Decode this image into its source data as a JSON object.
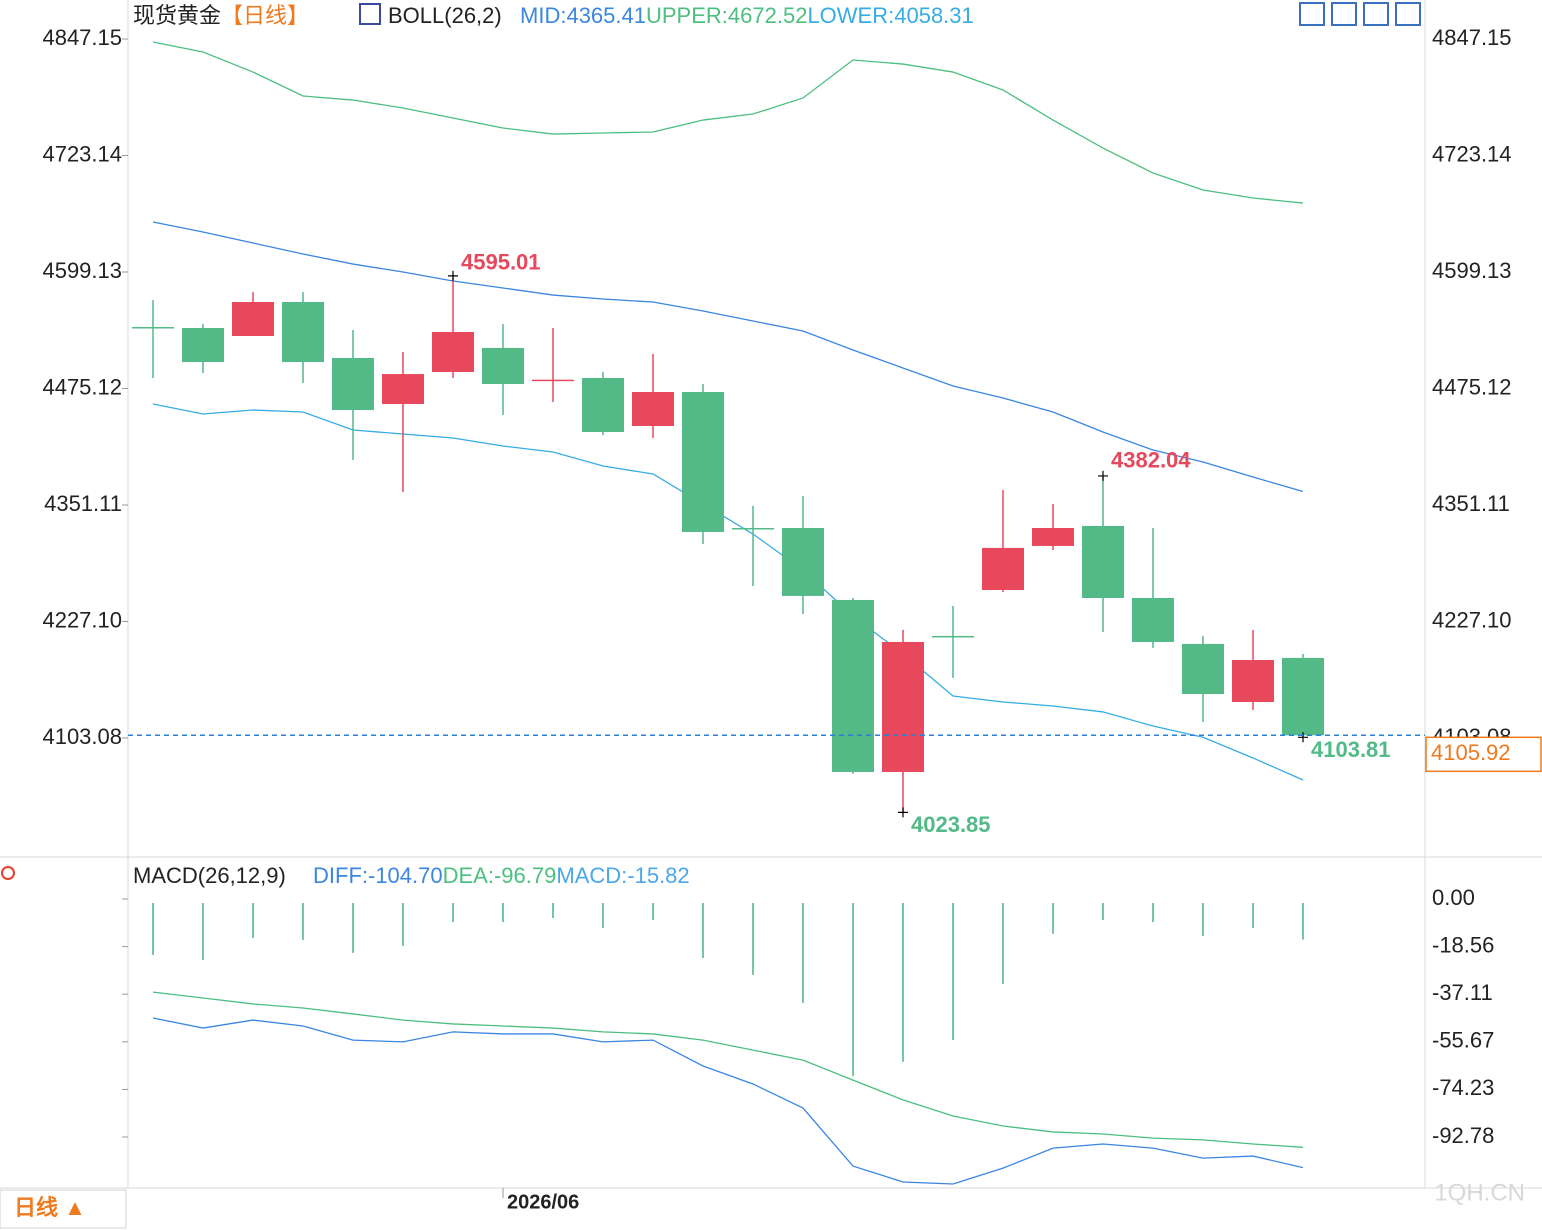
{
  "chart_data": [
    {
      "type": "candlestick",
      "title": "现货黄金",
      "period": "【日线】",
      "indicator": "BOLL(26,2)",
      "categories": [
        null,
        null,
        null,
        null,
        null,
        null,
        null,
        "2026/06",
        null,
        null,
        null,
        null,
        null,
        null,
        null,
        null,
        null,
        null,
        null,
        null,
        null,
        null,
        null,
        null
      ],
      "open": [
        4540.6,
        4539.5,
        4531.0,
        4567.2,
        4507.6,
        4458.6,
        4492.7,
        4518.3,
        4484.2,
        4486.3,
        4435.2,
        4471.4,
        4326.6,
        4326.6,
        4250.0,
        4066.9,
        4211.7,
        4260.6,
        4307.5,
        4328.8,
        4252.1,
        4203.2,
        4141.4,
        4188.3
      ],
      "high": [
        4569.3,
        4543.8,
        4577.8,
        4577.8,
        4537.4,
        4514.0,
        4595.01,
        4543.8,
        4539.5,
        4492.7,
        4511.9,
        4479.9,
        4350.1,
        4360.7,
        4252.1,
        4218.1,
        4243.6,
        4367.1,
        4352.2,
        4382.04,
        4326.6,
        4211.7,
        4218.1,
        4192.5
      ],
      "low": [
        4486.3,
        4491.6,
        4531.0,
        4481.0,
        4399.0,
        4365.0,
        4486.3,
        4446.9,
        4460.7,
        4425.6,
        4422.4,
        4309.6,
        4264.9,
        4235.1,
        4064.8,
        4023.85,
        4167.0,
        4258.5,
        4303.2,
        4215.9,
        4198.9,
        4120.1,
        4132.9,
        4103.81
      ],
      "close": [
        4540.3,
        4503.3,
        4567.2,
        4503.3,
        4452.2,
        4490.5,
        4535.3,
        4479.9,
        4484.5,
        4428.8,
        4471.4,
        4322.4,
        4326.3,
        4254.3,
        4066.9,
        4205.3,
        4211.4,
        4305.4,
        4326.6,
        4252.1,
        4205.3,
        4149.9,
        4186.1,
        4105.92
      ],
      "up_color": "#e8485c",
      "down_color": "#52b987",
      "series": [
        {
          "name": "UPPER:",
          "color": "#4cbf80",
          "values": [
            4844.0,
            4833.3,
            4812.0,
            4786.5,
            4782.2,
            4773.7,
            4763.1,
            4752.4,
            4746.0,
            4747.1,
            4748.2,
            4760.9,
            4767.3,
            4784.4,
            4824.8,
            4820.5,
            4812.0,
            4792.9,
            4760.9,
            4731.1,
            4704.5,
            4686.4,
            4677.9,
            4672.52
          ]
        },
        {
          "name": "MID:",
          "color": "#3a86e0",
          "values": [
            4652.4,
            4641.7,
            4630.0,
            4618.3,
            4607.6,
            4599.1,
            4589.6,
            4582.1,
            4574.6,
            4570.4,
            4567.2,
            4557.6,
            4547.0,
            4536.3,
            4516.1,
            4496.9,
            4477.8,
            4465.0,
            4450.1,
            4428.8,
            4409.6,
            4396.9,
            4380.9,
            4365.41
          ]
        },
        {
          "name": "LOWER:",
          "color": "#35ade3",
          "values": [
            4458.6,
            4448.0,
            4452.2,
            4450.1,
            4430.9,
            4426.7,
            4422.4,
            4413.9,
            4407.5,
            4392.6,
            4384.1,
            4352.2,
            4320.2,
            4281.9,
            4232.9,
            4192.5,
            4147.8,
            4141.4,
            4137.1,
            4130.8,
            4115.8,
            4103.8,
            4081.8,
            4058.31
          ]
        }
      ],
      "legend_order": [
        1,
        0,
        2
      ],
      "ylim": [
        3978.5,
        4888.7
      ],
      "yticks": [
        4847.15,
        4723.14,
        4599.13,
        4475.12,
        4351.11,
        {
          "value": 4227.1,
          "label": "4227.10"
        },
        4103.08
      ],
      "last_price_color": "#f07a1e"
    },
    {
      "type": "macd",
      "indicator": "MACD(26,12,9)",
      "series": [
        {
          "name": "DIFF:",
          "color": "#3a86e0",
          "values": [
            -46.4,
            -50.3,
            -47.2,
            -49.5,
            -55.0,
            -55.7,
            -51.8,
            -52.6,
            -52.6,
            -55.7,
            -55.0,
            -65.1,
            -72.1,
            -81.5,
            -104.1,
            -110.3,
            -111.1,
            -104.9,
            -97.1,
            -95.5,
            -97.1,
            -101.0,
            -100.2,
            -104.7
          ]
        },
        {
          "name": "DEA:",
          "color": "#4cbf80",
          "values": [
            -36.3,
            -38.6,
            -40.9,
            -42.5,
            -44.8,
            -47.2,
            -48.7,
            -49.5,
            -50.3,
            -51.8,
            -52.6,
            -55.0,
            -58.9,
            -62.8,
            -70.6,
            -78.3,
            -84.6,
            -88.5,
            -90.8,
            -91.6,
            -93.2,
            -93.9,
            -95.5,
            -96.79
          ]
        }
      ],
      "histogram": {
        "name": "MACD:",
        "color": "#4aa8e8",
        "bar_color": "#52b987",
        "values": [
          -21.8,
          -23.8,
          -15.2,
          -16.0,
          -21.0,
          -18.3,
          -9.0,
          -9.0,
          -7.4,
          -11.3,
          -8.2,
          -23.0,
          -29.6,
          -40.5,
          -69.0,
          -63.5,
          -55.0,
          -33.1,
          -13.6,
          -8.2,
          -9.0,
          -14.4,
          -11.3,
          -15.82
        ]
      },
      "legend": [
        {
          "name": "DIFF:",
          "value": -104.7,
          "label": "-104.70"
        },
        {
          "name": "DEA:",
          "value": -96.79
        },
        {
          "name": "MACD:",
          "value": -15.82
        }
      ],
      "ylim": [
        -112.65,
        15.2
      ],
      "yticks": [
        {
          "value": 0,
          "label": "0.00"
        },
        -18.56,
        -37.11,
        -55.67,
        -74.23,
        -92.78
      ]
    }
  ],
  "controls": {
    "period_button": "日线 ▲",
    "watermark": "1QH.CN"
  }
}
